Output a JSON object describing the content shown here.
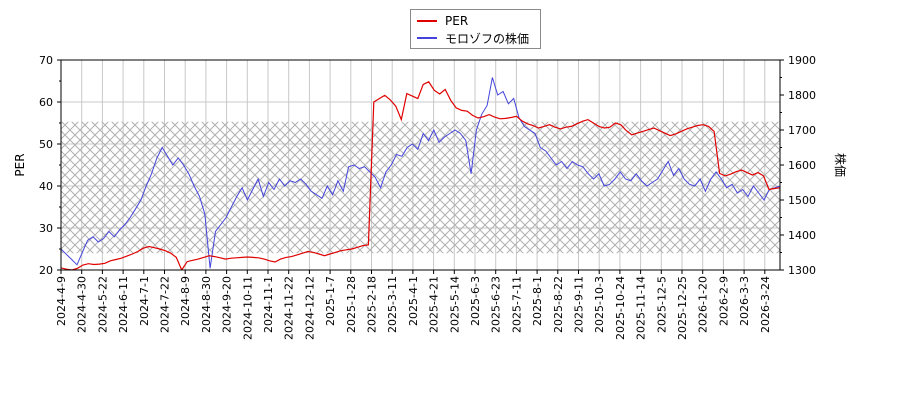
{
  "legend": {
    "items": [
      {
        "label": "PER",
        "color": "#e00000"
      },
      {
        "label": "モロゾフの株価",
        "color": "#4444dd"
      }
    ]
  },
  "axes": {
    "left_label": "PER",
    "right_label": "株価"
  },
  "chart_data": {
    "type": "line",
    "title": "",
    "xlabel": "",
    "ylabel": "PER",
    "y2label": "株価",
    "ylim": [
      20,
      70
    ],
    "y2lim": [
      1300,
      1900
    ],
    "yticks": [
      20,
      30,
      40,
      50,
      60,
      70
    ],
    "y2ticks": [
      1300,
      1400,
      1500,
      1600,
      1700,
      1800,
      1900
    ],
    "grid": true,
    "legend_position": "top-center",
    "shaded_band_per": [
      24,
      55.3
    ],
    "x_tick_labels": [
      "2024-4-9",
      "2024-4-30",
      "2024-5-22",
      "2024-6-11",
      "2024-7-1",
      "2024-7-22",
      "2024-8-9",
      "2024-8-30",
      "2024-9-20",
      "2024-10-11",
      "2024-11-1",
      "2024-11-22",
      "2024-12-12",
      "2025-1-7",
      "2025-1-28",
      "2025-2-18",
      "2025-3-11",
      "2025-4-1",
      "2025-4-21",
      "2025-5-14",
      "2025-6-3",
      "2025-6-23",
      "2025-7-11",
      "2025-8-1",
      "2025-8-22",
      "2025-9-11",
      "2025-10-3",
      "2025-10-24",
      "2025-11-14",
      "2025-12-5",
      "2025-12-25",
      "2026-1-20",
      "2026-2-9",
      "2026-3-3",
      "2026-3-24"
    ],
    "series": [
      {
        "name": "PER",
        "axis": "left",
        "color": "#e00000",
        "values": [
          20.5,
          20.2,
          20.0,
          20.4,
          21.2,
          21.5,
          21.3,
          21.4,
          21.6,
          22.2,
          22.5,
          22.8,
          23.3,
          23.8,
          24.4,
          25.2,
          25.6,
          25.3,
          25.0,
          24.6,
          24.0,
          23.0,
          20.0,
          22.0,
          22.3,
          22.6,
          23.0,
          23.4,
          23.2,
          22.9,
          22.6,
          22.8,
          22.9,
          23.0,
          23.1,
          23.0,
          22.9,
          22.6,
          22.2,
          21.9,
          22.6,
          23.0,
          23.2,
          23.6,
          24.0,
          24.4,
          24.2,
          23.8,
          23.4,
          23.8,
          24.2,
          24.6,
          24.8,
          25.0,
          25.4,
          25.8,
          26.0,
          60.0,
          60.8,
          61.6,
          60.5,
          59.0,
          55.8,
          62.0,
          61.4,
          60.8,
          64.2,
          64.8,
          62.8,
          61.9,
          63.0,
          60.4,
          58.6,
          58.0,
          57.8,
          56.8,
          56.2,
          56.5,
          57.0,
          56.4,
          56.0,
          56.1,
          56.3,
          56.6,
          55.5,
          54.8,
          54.4,
          53.8,
          54.2,
          54.6,
          54.0,
          53.6,
          54.0,
          54.2,
          54.8,
          55.4,
          55.8,
          55.0,
          54.2,
          53.8,
          54.0,
          55.0,
          54.6,
          53.2,
          52.2,
          52.6,
          53.0,
          53.4,
          53.8,
          53.2,
          52.6,
          52.0,
          52.4,
          53.0,
          53.6,
          54.0,
          54.4,
          54.6,
          54.2,
          53.0,
          43.0,
          42.4,
          42.8,
          43.4,
          43.8,
          43.2,
          42.6,
          43.2,
          42.4,
          39.2,
          39.4,
          39.6
        ]
      },
      {
        "name": "モロゾフの株価",
        "axis": "right",
        "color": "#4444dd",
        "values": [
          1360,
          1345,
          1330,
          1315,
          1350,
          1385,
          1395,
          1380,
          1390,
          1410,
          1395,
          1415,
          1430,
          1450,
          1475,
          1500,
          1540,
          1575,
          1620,
          1650,
          1625,
          1600,
          1620,
          1600,
          1575,
          1540,
          1510,
          1460,
          1305,
          1410,
          1430,
          1450,
          1480,
          1510,
          1535,
          1500,
          1530,
          1560,
          1510,
          1550,
          1530,
          1560,
          1540,
          1555,
          1550,
          1560,
          1545,
          1525,
          1515,
          1505,
          1540,
          1515,
          1555,
          1525,
          1595,
          1600,
          1590,
          1595,
          1580,
          1565,
          1535,
          1580,
          1600,
          1630,
          1625,
          1650,
          1660,
          1645,
          1690,
          1670,
          1700,
          1665,
          1680,
          1690,
          1700,
          1690,
          1670,
          1575,
          1700,
          1745,
          1770,
          1850,
          1800,
          1810,
          1775,
          1790,
          1735,
          1710,
          1700,
          1690,
          1650,
          1640,
          1620,
          1600,
          1610,
          1590,
          1610,
          1600,
          1595,
          1575,
          1560,
          1575,
          1540,
          1545,
          1560,
          1580,
          1560,
          1555,
          1575,
          1555,
          1540,
          1550,
          1560,
          1585,
          1610,
          1570,
          1590,
          1560,
          1545,
          1540,
          1560,
          1525,
          1560,
          1580,
          1560,
          1535,
          1545,
          1520,
          1530,
          1510,
          1540,
          1520,
          1500,
          1530,
          1535,
          1540
        ]
      }
    ]
  }
}
